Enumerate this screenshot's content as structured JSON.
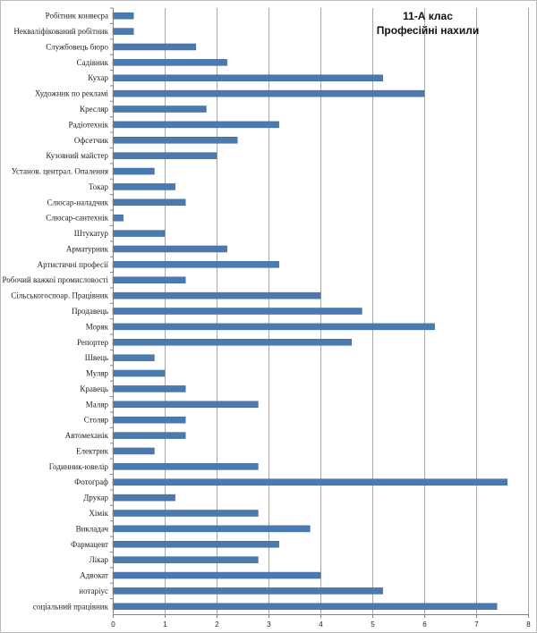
{
  "chart_data": {
    "type": "bar",
    "orientation": "horizontal",
    "title_lines": [
      "11-А клас",
      "Професійні нахили"
    ],
    "categories": [
      "Робітник конвеєра",
      "Некваліфікований робітник",
      "Службовець бюро",
      "Садівник",
      "Кухар",
      "Художник по рекламі",
      "Кресляр",
      "Радіотехнік",
      "Офсетчик",
      "Кузовний майстер",
      "Установ. централ. Опалення",
      "Токар",
      "Слюсар-наладчик",
      "Слюсар-сантехнік",
      "Штукатур",
      "Арматурник",
      "Артистичні професії",
      "Робочий важкої промисловості",
      "Сільськогоспоар. Працівник",
      "Продавець",
      "Моряк",
      "Репортер",
      "Швець",
      "Муляр",
      "Кравець",
      "Маляр",
      "Столяр",
      "Автомеханік",
      "Електрик",
      "Годинник-ювелір",
      "Фотограф",
      "Друкар",
      "Хімік",
      "Викладач",
      "Фармацевт",
      "Лікар",
      "Адвокат",
      "нотаріус",
      "соціальний працівник"
    ],
    "values": [
      0.4,
      0.4,
      1.6,
      2.2,
      5.2,
      6.0,
      1.8,
      3.2,
      2.4,
      2.0,
      0.8,
      1.2,
      1.4,
      0.2,
      1.0,
      2.2,
      3.2,
      1.4,
      4.0,
      4.8,
      6.2,
      4.6,
      0.8,
      1.0,
      1.4,
      2.8,
      1.4,
      1.4,
      0.8,
      2.8,
      7.6,
      1.2,
      2.8,
      3.8,
      3.2,
      2.8,
      4.0,
      5.2,
      7.4
    ],
    "xlim": [
      0,
      8
    ],
    "x_ticks": [
      "0",
      "1",
      "2",
      "3",
      "4",
      "5",
      "6",
      "7",
      "8"
    ],
    "grid": true,
    "bar_color": "#4a7ab0"
  }
}
